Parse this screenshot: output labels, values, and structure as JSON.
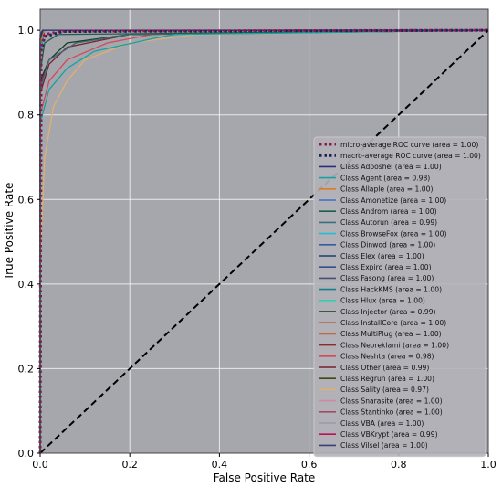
{
  "chart_data": {
    "type": "line",
    "title": "",
    "xlabel": "False Positive Rate",
    "ylabel": "True Positive Rate",
    "xlim": [
      0.0,
      1.0
    ],
    "ylim": [
      0.0,
      1.05
    ],
    "xticks": [
      "0.0",
      "0.2",
      "0.4",
      "0.6",
      "0.8",
      "1.0"
    ],
    "yticks": [
      "0.0",
      "0.2",
      "0.4",
      "0.6",
      "0.8",
      "1.0"
    ],
    "grid": true,
    "background": "#a6a6ad",
    "legend_position": "right",
    "chance_line": {
      "x": [
        0,
        1
      ],
      "y": [
        0,
        1
      ],
      "color": "#000000",
      "style": "dashed"
    },
    "series": [
      {
        "name": "micro-average ROC curve (area = 1.00)",
        "color": "#8b1a4a",
        "style": "dotted",
        "x": [
          0,
          0.002,
          0.01,
          0.05,
          1.0
        ],
        "y": [
          0,
          0.96,
          0.99,
          0.998,
          1.0
        ]
      },
      {
        "name": "macro-average ROC curve (area = 1.00)",
        "color": "#1a1f5e",
        "style": "dotted",
        "x": [
          0,
          0.002,
          0.01,
          0.05,
          1.0
        ],
        "y": [
          0,
          0.95,
          0.985,
          0.997,
          1.0
        ]
      },
      {
        "name": "Class Adposhel (area = 1.00)",
        "color": "#2a2f7a",
        "style": "solid",
        "x": [
          0,
          0.0,
          0.005,
          1.0
        ],
        "y": [
          0,
          0.98,
          1.0,
          1.0
        ]
      },
      {
        "name": "Class Agent (area = 0.98)",
        "color": "#17a2a2",
        "style": "solid",
        "x": [
          0,
          0.0,
          0.02,
          0.06,
          0.12,
          0.25,
          0.3,
          1.0
        ],
        "y": [
          0,
          0.78,
          0.86,
          0.91,
          0.95,
          0.98,
          0.99,
          1.0
        ]
      },
      {
        "name": "Class Allaple (area = 1.00)",
        "color": "#e07b1f",
        "style": "solid",
        "x": [
          0,
          0.0,
          0.01,
          1.0
        ],
        "y": [
          0,
          0.97,
          1.0,
          1.0
        ]
      },
      {
        "name": "Class Amonetize (area = 1.00)",
        "color": "#3a6fbf",
        "style": "solid",
        "x": [
          0,
          0.0,
          0.005,
          1.0
        ],
        "y": [
          0,
          0.98,
          1.0,
          1.0
        ]
      },
      {
        "name": "Class Androm (area = 1.00)",
        "color": "#1f5f4a",
        "style": "solid",
        "x": [
          0,
          0.0,
          0.01,
          0.04,
          1.0
        ],
        "y": [
          0,
          0.9,
          0.97,
          0.99,
          1.0
        ]
      },
      {
        "name": "Class Autorun (area = 0.99)",
        "color": "#3a6f7f",
        "style": "solid",
        "x": [
          0,
          0.0,
          0.02,
          0.08,
          0.2,
          1.0
        ],
        "y": [
          0,
          0.86,
          0.93,
          0.97,
          0.99,
          1.0
        ]
      },
      {
        "name": "Class BrowseFox (area = 1.00)",
        "color": "#1fbfcf",
        "style": "solid",
        "x": [
          0,
          0.0,
          0.01,
          1.0
        ],
        "y": [
          0,
          0.95,
          1.0,
          1.0
        ]
      },
      {
        "name": "Class Dinwod (area = 1.00)",
        "color": "#2f5fa0",
        "style": "solid",
        "x": [
          0,
          0.0,
          0.008,
          1.0
        ],
        "y": [
          0,
          0.96,
          1.0,
          1.0
        ]
      },
      {
        "name": "Class Elex (area = 1.00)",
        "color": "#1a3f6f",
        "style": "solid",
        "x": [
          0,
          0.0,
          0.006,
          1.0
        ],
        "y": [
          0,
          0.97,
          1.0,
          1.0
        ]
      },
      {
        "name": "Class Expiro (area = 1.00)",
        "color": "#2f4f8f",
        "style": "solid",
        "x": [
          0,
          0.0,
          0.01,
          1.0
        ],
        "y": [
          0,
          0.94,
          1.0,
          1.0
        ]
      },
      {
        "name": "Class Fasong (area = 1.00)",
        "color": "#4a4f6f",
        "style": "solid",
        "x": [
          0,
          0.0,
          0.005,
          1.0
        ],
        "y": [
          0,
          0.99,
          1.0,
          1.0
        ]
      },
      {
        "name": "Class HackKMS (area = 1.00)",
        "color": "#157f8f",
        "style": "solid",
        "x": [
          0,
          0.0,
          0.01,
          1.0
        ],
        "y": [
          0,
          0.96,
          1.0,
          1.0
        ]
      },
      {
        "name": "Class Hlux (area = 1.00)",
        "color": "#2fcfaf",
        "style": "solid",
        "x": [
          0,
          0.0,
          0.01,
          1.0
        ],
        "y": [
          0,
          0.95,
          1.0,
          1.0
        ]
      },
      {
        "name": "Class Injector (area = 0.99)",
        "color": "#0f3f1f",
        "style": "solid",
        "x": [
          0,
          0.0,
          0.02,
          0.06,
          0.2,
          1.0
        ],
        "y": [
          0,
          0.88,
          0.93,
          0.97,
          0.99,
          1.0
        ]
      },
      {
        "name": "Class InstallCore (area = 1.00)",
        "color": "#b0582a",
        "style": "solid",
        "x": [
          0,
          0.0,
          0.01,
          1.0
        ],
        "y": [
          0,
          0.96,
          1.0,
          1.0
        ]
      },
      {
        "name": "Class MultiPlug (area = 1.00)",
        "color": "#c0644a",
        "style": "solid",
        "x": [
          0,
          0.0,
          0.01,
          1.0
        ],
        "y": [
          0,
          0.95,
          1.0,
          1.0
        ]
      },
      {
        "name": "Class Neoreklami (area = 1.00)",
        "color": "#8a2a2a",
        "style": "solid",
        "x": [
          0,
          0.0,
          0.01,
          1.0
        ],
        "y": [
          0,
          0.96,
          1.0,
          1.0
        ]
      },
      {
        "name": "Class Neshta (area = 0.98)",
        "color": "#d04a5a",
        "style": "solid",
        "x": [
          0,
          0.0,
          0.02,
          0.06,
          0.15,
          0.25,
          1.0
        ],
        "y": [
          0,
          0.8,
          0.88,
          0.93,
          0.97,
          0.99,
          1.0
        ]
      },
      {
        "name": "Class Other (area = 0.99)",
        "color": "#7a1f2f",
        "style": "solid",
        "x": [
          0,
          0.0,
          0.02,
          0.06,
          0.2,
          1.0
        ],
        "y": [
          0,
          0.85,
          0.92,
          0.96,
          0.99,
          1.0
        ]
      },
      {
        "name": "Class Regrun (area = 1.00)",
        "color": "#3f4a0f",
        "style": "solid",
        "x": [
          0,
          0.0,
          0.01,
          1.0
        ],
        "y": [
          0,
          0.95,
          1.0,
          1.0
        ]
      },
      {
        "name": "Class Sality (area = 0.97)",
        "color": "#e0b070",
        "style": "solid",
        "x": [
          0,
          0.0,
          0.01,
          0.03,
          0.06,
          0.1,
          0.2,
          0.35,
          1.0
        ],
        "y": [
          0,
          0.45,
          0.7,
          0.82,
          0.88,
          0.93,
          0.97,
          0.99,
          1.0
        ]
      },
      {
        "name": "Class Snarasite (area = 1.00)",
        "color": "#d08aa0",
        "style": "solid",
        "x": [
          0,
          0.0,
          0.01,
          1.0
        ],
        "y": [
          0,
          0.94,
          1.0,
          1.0
        ]
      },
      {
        "name": "Class Stantinko (area = 1.00)",
        "color": "#a04a6a",
        "style": "solid",
        "x": [
          0,
          0.0,
          0.01,
          1.0
        ],
        "y": [
          0,
          0.96,
          1.0,
          1.0
        ]
      },
      {
        "name": "Class VBA (area = 1.00)",
        "color": "#9a9aa8",
        "style": "solid",
        "x": [
          0,
          0.0,
          0.005,
          1.0
        ],
        "y": [
          0,
          0.99,
          1.0,
          1.0
        ]
      },
      {
        "name": "Class VBKrypt (area = 0.99)",
        "color": "#c0105a",
        "style": "solid",
        "x": [
          0,
          0.0,
          0.02,
          0.08,
          0.2,
          1.0
        ],
        "y": [
          0,
          0.87,
          0.93,
          0.97,
          0.99,
          1.0
        ]
      },
      {
        "name": "Class Vilsel (area = 1.00)",
        "color": "#3a3f7a",
        "style": "solid",
        "x": [
          0,
          0.0,
          0.005,
          1.0
        ],
        "y": [
          0,
          0.98,
          1.0,
          1.0
        ]
      }
    ]
  }
}
